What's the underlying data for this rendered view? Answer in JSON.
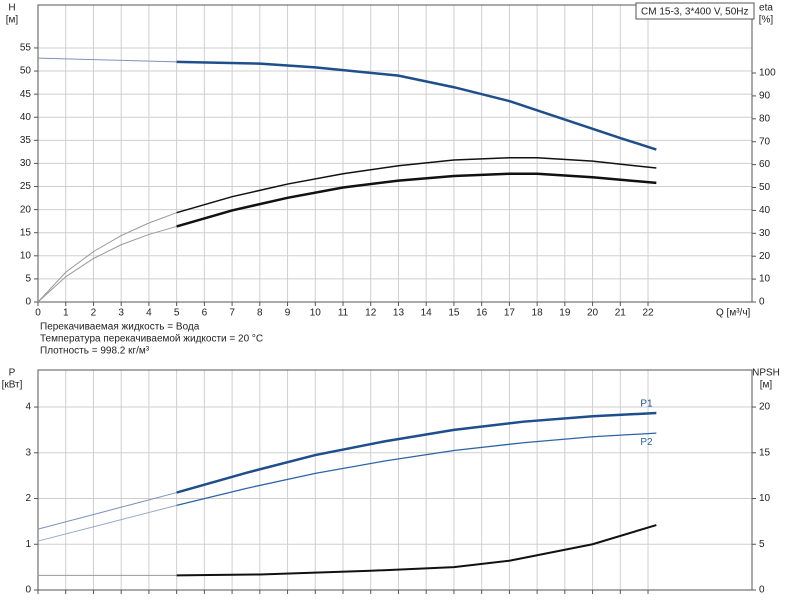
{
  "chart_data": [
    {
      "type": "line",
      "box_title": "CM 15-3, 3*400 V, 50Hz",
      "ylabel": "H",
      "yunit": "[м]",
      "y2label": "eta",
      "y2unit": "[%]",
      "xlabel": "Q [м³/ч]",
      "notes": [
        "Перекачиваемая жидкость = Вода",
        "Температура перекачиваемой жидкости = 20 °C",
        "Плотность = 998.2 кг/м³"
      ],
      "xlim": [
        0,
        25.75
      ],
      "xticks": [
        0,
        1,
        2,
        3,
        4,
        5,
        6,
        7,
        8,
        9,
        10,
        11,
        12,
        13,
        14,
        15,
        16,
        17,
        18,
        19,
        20,
        21,
        22
      ],
      "ylim": [
        0,
        64.3
      ],
      "yticks": [
        0,
        5,
        10,
        15,
        20,
        25,
        30,
        35,
        40,
        45,
        50,
        55
      ],
      "y2lim": [
        0,
        129.7
      ],
      "y2ticks": [
        0,
        10,
        20,
        30,
        40,
        50,
        60,
        70,
        80,
        90,
        100
      ],
      "grid": true,
      "show_xtick_labels": true,
      "series": [
        {
          "color": "#7d93b8",
          "width": 1,
          "x": [
            0,
            2.5,
            5
          ],
          "values": [
            52.8,
            52.4,
            52
          ]
        },
        {
          "color": "#1f4e8c",
          "width": 2.5,
          "x": [
            5,
            8,
            10,
            13,
            15,
            17,
            19,
            21,
            22.3
          ],
          "values": [
            52,
            51.6,
            50.8,
            49,
            46.5,
            43.5,
            39.5,
            35.5,
            33
          ]
        },
        {
          "axis": "y2",
          "color": "#999999",
          "width": 1,
          "x": [
            0,
            1,
            2,
            3,
            4,
            5
          ],
          "values": [
            0,
            13,
            22,
            29,
            34.5,
            39
          ]
        },
        {
          "axis": "y2",
          "color": "#111111",
          "width": 1.5,
          "x": [
            5,
            7,
            9,
            11,
            13,
            15,
            17,
            18,
            20,
            22.3
          ],
          "values": [
            39,
            46,
            51.5,
            56,
            59.5,
            62,
            63,
            63,
            61.5,
            58.5
          ]
        },
        {
          "axis": "y2",
          "color": "#999999",
          "width": 1,
          "x": [
            0,
            1,
            2,
            3,
            4,
            5
          ],
          "values": [
            0,
            11,
            19,
            25,
            29.5,
            33
          ]
        },
        {
          "axis": "y2",
          "color": "#111111",
          "width": 2.5,
          "x": [
            5,
            7,
            9,
            11,
            13,
            15,
            17,
            18,
            20,
            22.3
          ],
          "values": [
            33,
            40,
            45.5,
            50,
            53,
            55,
            56,
            56,
            54.5,
            52
          ]
        }
      ]
    },
    {
      "type": "line",
      "ylabel": "P",
      "yunit": "[кВт]",
      "y2label": "NPSH",
      "y2unit": "[м]",
      "xlim": [
        0,
        25.75
      ],
      "xticks": [
        0,
        1,
        2,
        3,
        4,
        5,
        6,
        7,
        8,
        9,
        10,
        11,
        12,
        13,
        14,
        15,
        16,
        17,
        18,
        19,
        20,
        21,
        22
      ],
      "ylim": [
        0,
        4.81
      ],
      "yticks": [
        0,
        1,
        2,
        3,
        4
      ],
      "y2lim": [
        0,
        24.05
      ],
      "y2ticks": [
        0,
        5,
        10,
        15,
        20
      ],
      "grid": true,
      "show_xtick_labels": false,
      "series": [
        {
          "color": "#7d93b8",
          "width": 1,
          "x": [
            0,
            2.5,
            5
          ],
          "values": [
            1.33,
            1.73,
            2.13
          ]
        },
        {
          "name": "P1",
          "color": "#1f4e8c",
          "width": 2.5,
          "x": [
            5,
            7.5,
            10,
            12.5,
            15,
            17.5,
            20,
            22.3
          ],
          "values": [
            2.13,
            2.56,
            2.95,
            3.25,
            3.5,
            3.68,
            3.8,
            3.87
          ]
        },
        {
          "color": "#9aa9c4",
          "width": 1,
          "x": [
            0,
            2.5,
            5
          ],
          "values": [
            1.07,
            1.46,
            1.85
          ]
        },
        {
          "name": "P2",
          "color": "#2d64a8",
          "width": 1.3,
          "x": [
            5,
            7.5,
            10,
            12.5,
            15,
            17.5,
            20,
            22.3
          ],
          "values": [
            1.85,
            2.22,
            2.55,
            2.82,
            3.05,
            3.22,
            3.35,
            3.43
          ]
        },
        {
          "axis": "y2",
          "color": "#999999",
          "width": 1,
          "x": [
            0,
            5
          ],
          "values": [
            1.6,
            1.6
          ]
        },
        {
          "axis": "y2",
          "color": "#111111",
          "width": 2,
          "x": [
            5,
            8,
            10,
            12,
            15,
            17,
            18,
            20,
            22.3
          ],
          "values": [
            1.6,
            1.7,
            1.9,
            2.1,
            2.5,
            3.2,
            3.8,
            5,
            7.1
          ]
        }
      ]
    }
  ]
}
